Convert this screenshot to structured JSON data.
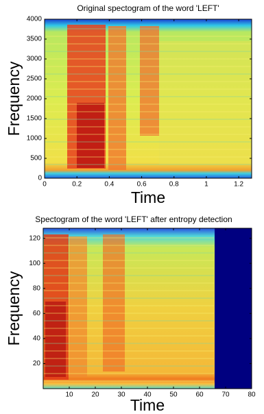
{
  "chart_data": [
    {
      "type": "heatmap",
      "title": "Original spectogram of the word 'LEFT'",
      "x_label": "Time",
      "y_label": "Frequency",
      "xlim": [
        0,
        1.28
      ],
      "xticks": [
        0,
        0.2,
        0.4,
        0.6,
        0.8,
        1,
        1.2
      ],
      "ylim": [
        0,
        4000
      ],
      "yticks": [
        0,
        500,
        1000,
        1500,
        2000,
        2500,
        3000,
        3500,
        4000
      ]
    },
    {
      "type": "heatmap",
      "title": "Spectogram of the word 'LEFT' after entropy detection",
      "x_label": "Time",
      "y_label": "Frequency",
      "xlim": [
        0,
        80
      ],
      "xticks": [
        10,
        20,
        30,
        40,
        50,
        60,
        70,
        80
      ],
      "ylim": [
        0,
        128
      ],
      "yticks": [
        20,
        40,
        60,
        80,
        100,
        120
      ]
    }
  ]
}
